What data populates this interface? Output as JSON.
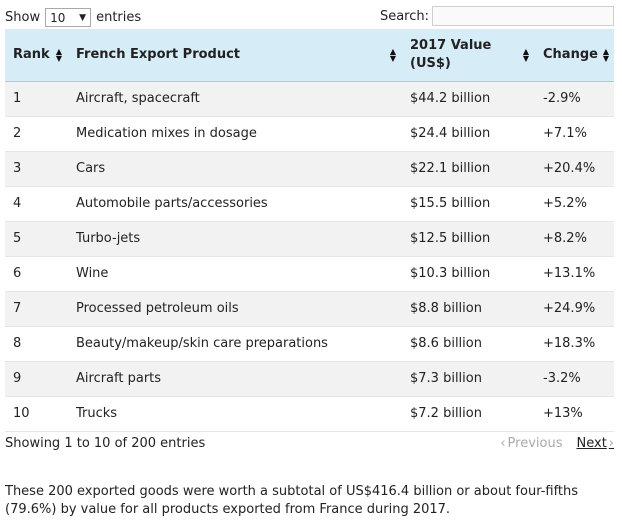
{
  "controls": {
    "show_label": "Show",
    "page_size": "10",
    "entries_label": "entries",
    "search_label": "Search:",
    "search_value": ""
  },
  "table": {
    "headers": [
      {
        "label": "Rank"
      },
      {
        "label": "French Export Product"
      },
      {
        "label": "2017 Value (US$)"
      },
      {
        "label": "Change"
      }
    ],
    "rows": [
      {
        "rank": "1",
        "product": "Aircraft, spacecraft",
        "value": "$44.2 billion",
        "change": "-2.9%"
      },
      {
        "rank": "2",
        "product": "Medication mixes in dosage",
        "value": "$24.4 billion",
        "change": "+7.1%"
      },
      {
        "rank": "3",
        "product": "Cars",
        "value": "$22.1 billion",
        "change": "+20.4%"
      },
      {
        "rank": "4",
        "product": "Automobile parts/accessories",
        "value": "$15.5 billion",
        "change": "+5.2%"
      },
      {
        "rank": "5",
        "product": "Turbo-jets",
        "value": "$12.5 billion",
        "change": "+8.2%"
      },
      {
        "rank": "6",
        "product": "Wine",
        "value": "$10.3 billion",
        "change": "+13.1%"
      },
      {
        "rank": "7",
        "product": "Processed petroleum oils",
        "value": "$8.8 billion",
        "change": "+24.9%"
      },
      {
        "rank": "8",
        "product": "Beauty/makeup/skin care preparations",
        "value": "$8.6 billion",
        "change": "+18.3%"
      },
      {
        "rank": "9",
        "product": "Aircraft parts",
        "value": "$7.3 billion",
        "change": "-3.2%"
      },
      {
        "rank": "10",
        "product": "Trucks",
        "value": "$7.2 billion",
        "change": "+13%"
      }
    ]
  },
  "footer": {
    "info": "Showing 1 to 10 of 200 entries",
    "previous_label": "Previous",
    "next_label": "Next"
  },
  "summary": "These 200 exported goods were worth a subtotal of US$416.4 billion or about four-fifths (79.6%) by value for all products exported from France during 2017."
}
